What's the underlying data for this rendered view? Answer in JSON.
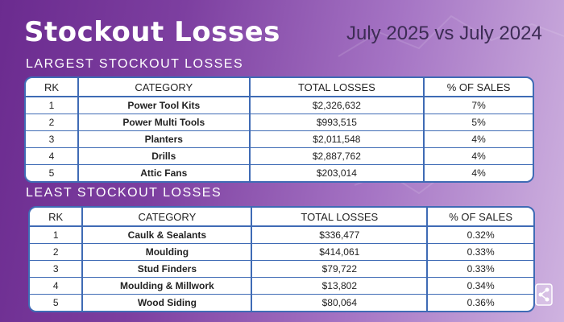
{
  "header": {
    "title": "Stockout Losses",
    "subtitle": "July 2025 vs July 2024"
  },
  "largest": {
    "label": "LARGEST STOCKOUT LOSSES",
    "columns": [
      "RK",
      "CATEGORY",
      "TOTAL LOSSES",
      "% OF SALES"
    ],
    "rows": [
      {
        "rk": "1",
        "category": "Power Tool Kits",
        "losses": "$2,326,632",
        "pct": "7%"
      },
      {
        "rk": "2",
        "category": "Power Multi Tools",
        "losses": "$993,515",
        "pct": "5%"
      },
      {
        "rk": "3",
        "category": "Planters",
        "losses": "$2,011,548",
        "pct": "4%"
      },
      {
        "rk": "4",
        "category": "Drills",
        "losses": "$2,887,762",
        "pct": "4%"
      },
      {
        "rk": "5",
        "category": "Attic Fans",
        "losses": "$203,014",
        "pct": "4%"
      }
    ]
  },
  "least": {
    "label": "LEAST STOCKOUT LOSSES",
    "columns": [
      "RK",
      "CATEGORY",
      "TOTAL LOSSES",
      "% OF SALES"
    ],
    "rows": [
      {
        "rk": "1",
        "category": "Caulk & Sealants",
        "losses": "$336,477",
        "pct": "0.32%"
      },
      {
        "rk": "2",
        "category": "Moulding",
        "losses": "$414,061",
        "pct": "0.33%"
      },
      {
        "rk": "3",
        "category": "Stud Finders",
        "losses": "$79,722",
        "pct": "0.33%"
      },
      {
        "rk": "4",
        "category": "Moulding & Millwork",
        "losses": "$13,802",
        "pct": "0.34%"
      },
      {
        "rk": "5",
        "category": "Wood Siding",
        "losses": "$80,064",
        "pct": "0.36%"
      }
    ]
  },
  "icons": {
    "share": "share-icon"
  },
  "colors": {
    "table_border": "#3f6bb5",
    "title_text": "#ffffff",
    "subtitle_text": "#3d2c55"
  }
}
